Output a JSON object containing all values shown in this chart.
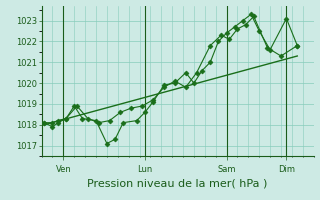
{
  "bg_color": "#cdeae4",
  "line_color": "#1a6e1a",
  "grid_color": "#88ccbb",
  "tick_color": "#1a5c1a",
  "xlabel": "Pression niveau de la mer( hPa )",
  "ylim": [
    1016.5,
    1023.7
  ],
  "yticks": [
    1017,
    1018,
    1019,
    1020,
    1021,
    1022,
    1023
  ],
  "day_labels": [
    "Ven",
    "Lun",
    "Sam",
    "Dim"
  ],
  "day_positions": [
    8,
    38,
    68,
    90
  ],
  "xlim": [
    0,
    100
  ],
  "series1_x": [
    1,
    4,
    6,
    9,
    12,
    15,
    20,
    24,
    27,
    30,
    35,
    38,
    41,
    45,
    49,
    53,
    56,
    59,
    62,
    65,
    68,
    71,
    74,
    77,
    80,
    84,
    90,
    94
  ],
  "series1_y": [
    1018.1,
    1017.9,
    1018.1,
    1018.3,
    1018.9,
    1018.3,
    1018.2,
    1017.1,
    1017.3,
    1018.1,
    1018.2,
    1018.6,
    1019.1,
    1019.9,
    1020.0,
    1020.5,
    1020.0,
    1020.6,
    1021.0,
    1022.0,
    1022.4,
    1022.7,
    1023.0,
    1023.3,
    1022.5,
    1021.6,
    1023.1,
    1021.8
  ],
  "series2_x": [
    1,
    4,
    6,
    9,
    13,
    17,
    21,
    25,
    29,
    33,
    37,
    41,
    45,
    49,
    53,
    57,
    62,
    66,
    69,
    72,
    75,
    78,
    83,
    88,
    94
  ],
  "series2_y": [
    1018.1,
    1018.1,
    1018.2,
    1018.3,
    1018.9,
    1018.3,
    1018.1,
    1018.2,
    1018.6,
    1018.8,
    1018.9,
    1019.2,
    1019.8,
    1020.1,
    1019.8,
    1020.5,
    1021.8,
    1022.3,
    1022.1,
    1022.6,
    1022.8,
    1023.2,
    1021.7,
    1021.3,
    1021.8
  ],
  "trend_x": [
    1,
    94
  ],
  "trend_y": [
    1018.0,
    1021.3
  ],
  "vline_positions": [
    8,
    38,
    68,
    90
  ],
  "minor_x_step": 4,
  "xlabel_fontsize": 8,
  "tick_fontsize": 6
}
